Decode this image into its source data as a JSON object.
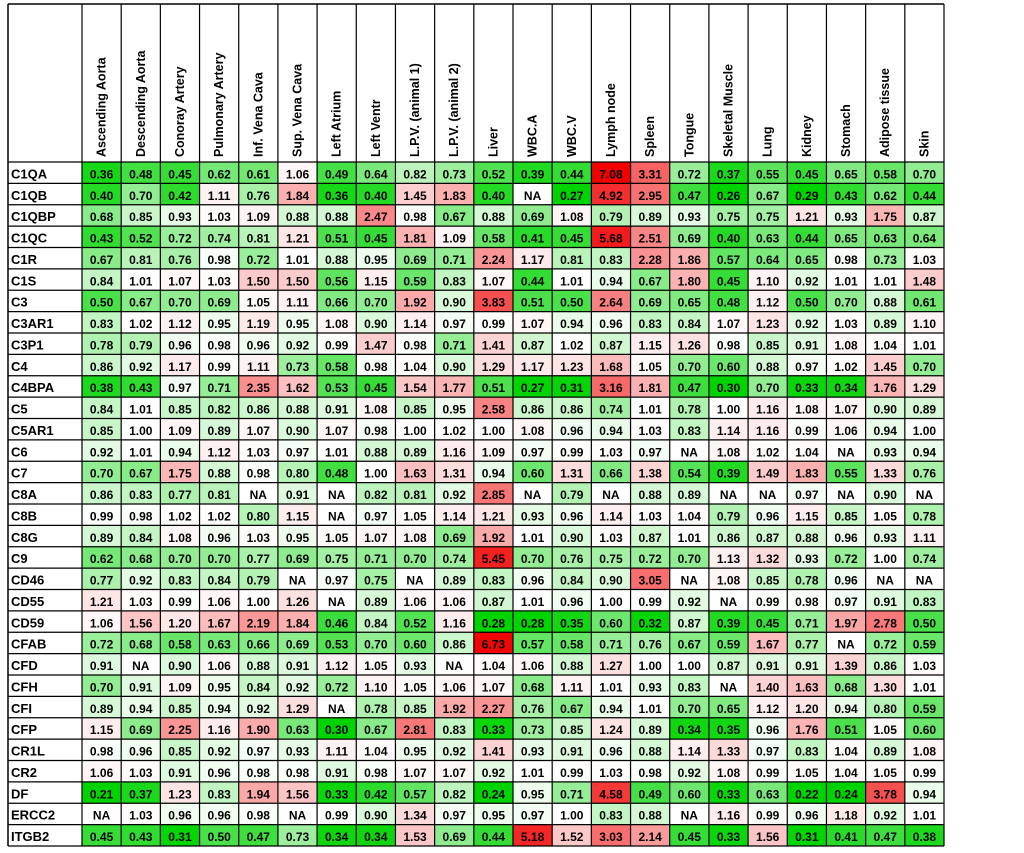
{
  "chart_data": {
    "type": "heatmap",
    "corner_label": "",
    "columns": [
      "Ascending Aorta",
      "Descending Aorta",
      "Conoray Artery",
      "Pulmonary Artery",
      "Inf. Vena Cava",
      "Sup. Vena Cava",
      "Left Atrium",
      "Left Ventr",
      "L.P.V. (animal 1)",
      "L.P.V. (animal 2)",
      "Liver",
      "WBC.A",
      "WBC.V",
      "Lymph node",
      "Spleen",
      "Tongue",
      "Skeletal Muscle",
      "Lung",
      "Kidney",
      "Stomach",
      "Adipose tissue",
      "Skin"
    ],
    "rows": [
      "C1QA",
      "C1QB",
      "C1QBP",
      "C1QC",
      "C1R",
      "C1S",
      "C3",
      "C3AR1",
      "C3P1",
      "C4",
      "C4BPA",
      "C5",
      "C5AR1",
      "C6",
      "C7",
      "C8A",
      "C8B",
      "C8G",
      "C9",
      "CD46",
      "CD55",
      "CD59",
      "CFAB",
      "CFD",
      "CFH",
      "CFI",
      "CFP",
      "CR1L",
      "CR2",
      "DF",
      "ERCC2",
      "ITGB2"
    ],
    "values": [
      [
        "0.36",
        "0.48",
        "0.45",
        "0.62",
        "0.61",
        "1.06",
        "0.49",
        "0.64",
        "0.82",
        "0.73",
        "0.52",
        "0.39",
        "0.44",
        "7.08",
        "3.31",
        "0.72",
        "0.37",
        "0.55",
        "0.45",
        "0.65",
        "0.58",
        "0.70"
      ],
      [
        "0.40",
        "0.70",
        "0.42",
        "1.11",
        "0.76",
        "1.84",
        "0.36",
        "0.40",
        "1.45",
        "1.83",
        "0.40",
        "NA",
        "0.27",
        "4.92",
        "2.95",
        "0.47",
        "0.26",
        "0.67",
        "0.29",
        "0.43",
        "0.62",
        "0.44"
      ],
      [
        "0.68",
        "0.85",
        "0.93",
        "1.03",
        "1.09",
        "0.88",
        "0.88",
        "2.47",
        "0.98",
        "0.67",
        "0.88",
        "0.69",
        "1.08",
        "0.79",
        "0.89",
        "0.93",
        "0.75",
        "0.75",
        "1.21",
        "0.93",
        "1.75",
        "0.87"
      ],
      [
        "0.43",
        "0.52",
        "0.72",
        "0.74",
        "0.81",
        "1.21",
        "0.51",
        "0.45",
        "1.81",
        "1.09",
        "0.58",
        "0.41",
        "0.45",
        "5.68",
        "2.51",
        "0.69",
        "0.40",
        "0.63",
        "0.44",
        "0.65",
        "0.63",
        "0.64"
      ],
      [
        "0.67",
        "0.81",
        "0.76",
        "0.98",
        "0.72",
        "1.01",
        "0.88",
        "0.95",
        "0.69",
        "0.71",
        "2.24",
        "1.17",
        "0.81",
        "0.83",
        "2.28",
        "1.86",
        "0.57",
        "0.64",
        "0.65",
        "0.98",
        "0.73",
        "1.03"
      ],
      [
        "0.84",
        "1.01",
        "1.07",
        "1.03",
        "1.50",
        "1.50",
        "0.56",
        "1.15",
        "0.59",
        "0.83",
        "1.07",
        "0.44",
        "1.01",
        "0.94",
        "0.67",
        "1.80",
        "0.45",
        "1.10",
        "0.92",
        "1.01",
        "1.01",
        "1.48"
      ],
      [
        "0.50",
        "0.67",
        "0.70",
        "0.69",
        "1.05",
        "1.11",
        "0.66",
        "0.70",
        "1.92",
        "0.90",
        "3.83",
        "0.51",
        "0.50",
        "2.64",
        "0.69",
        "0.65",
        "0.48",
        "1.12",
        "0.50",
        "0.70",
        "0.88",
        "0.61"
      ],
      [
        "0.83",
        "1.02",
        "1.12",
        "0.95",
        "1.19",
        "0.95",
        "1.08",
        "0.90",
        "1.14",
        "0.97",
        "0.99",
        "1.07",
        "0.94",
        "0.96",
        "0.83",
        "0.84",
        "1.07",
        "1.23",
        "0.92",
        "1.03",
        "0.89",
        "1.10"
      ],
      [
        "0.78",
        "0.79",
        "0.96",
        "0.98",
        "0.96",
        "0.92",
        "0.99",
        "1.47",
        "0.98",
        "0.71",
        "1.41",
        "0.87",
        "1.02",
        "0.87",
        "1.15",
        "1.26",
        "0.98",
        "0.85",
        "0.91",
        "1.08",
        "1.04",
        "1.01"
      ],
      [
        "0.86",
        "0.92",
        "1.17",
        "0.99",
        "1.11",
        "0.73",
        "0.58",
        "0.98",
        "1.04",
        "0.90",
        "1.29",
        "1.17",
        "1.23",
        "1.68",
        "1.05",
        "0.70",
        "0.60",
        "0.88",
        "0.97",
        "1.02",
        "1.45",
        "0.70"
      ],
      [
        "0.38",
        "0.43",
        "0.97",
        "0.71",
        "2.35",
        "1.62",
        "0.53",
        "0.45",
        "1.54",
        "1.77",
        "0.51",
        "0.27",
        "0.31",
        "3.16",
        "1.81",
        "0.47",
        "0.30",
        "0.70",
        "0.33",
        "0.34",
        "1.76",
        "1.29"
      ],
      [
        "0.84",
        "1.01",
        "0.85",
        "0.82",
        "0.86",
        "0.88",
        "0.91",
        "1.08",
        "0.85",
        "0.95",
        "2.58",
        "0.86",
        "0.86",
        "0.74",
        "1.01",
        "0.78",
        "1.00",
        "1.16",
        "1.08",
        "1.07",
        "0.90",
        "0.89"
      ],
      [
        "0.85",
        "1.00",
        "1.09",
        "0.89",
        "1.07",
        "0.90",
        "1.07",
        "0.98",
        "1.00",
        "1.02",
        "1.00",
        "1.08",
        "0.96",
        "0.94",
        "1.03",
        "0.83",
        "1.14",
        "1.16",
        "0.99",
        "1.06",
        "0.94",
        "1.00"
      ],
      [
        "0.92",
        "1.01",
        "0.94",
        "1.12",
        "1.03",
        "0.97",
        "1.01",
        "0.88",
        "0.89",
        "1.16",
        "1.09",
        "0.97",
        "0.99",
        "1.03",
        "0.97",
        "NA",
        "1.08",
        "1.02",
        "1.04",
        "NA",
        "0.93",
        "0.94"
      ],
      [
        "0.70",
        "0.67",
        "1.75",
        "0.88",
        "0.98",
        "0.80",
        "0.48",
        "1.00",
        "1.63",
        "1.31",
        "0.94",
        "0.60",
        "1.31",
        "0.66",
        "1.38",
        "0.54",
        "0.39",
        "1.49",
        "1.83",
        "0.55",
        "1.33",
        "0.76"
      ],
      [
        "0.86",
        "0.83",
        "0.77",
        "0.81",
        "NA",
        "0.91",
        "NA",
        "0.82",
        "0.81",
        "0.92",
        "2.85",
        "NA",
        "0.79",
        "NA",
        "0.88",
        "0.89",
        "NA",
        "NA",
        "0.97",
        "NA",
        "0.90",
        "NA"
      ],
      [
        "0.99",
        "0.98",
        "1.02",
        "1.02",
        "0.80",
        "1.15",
        "NA",
        "0.97",
        "1.05",
        "1.14",
        "1.21",
        "0.93",
        "0.96",
        "1.14",
        "1.03",
        "1.04",
        "0.79",
        "0.96",
        "1.15",
        "0.85",
        "1.05",
        "0.78"
      ],
      [
        "0.89",
        "0.84",
        "1.08",
        "0.96",
        "1.03",
        "0.95",
        "1.05",
        "1.07",
        "1.08",
        "0.69",
        "1.92",
        "1.01",
        "0.90",
        "1.03",
        "0.87",
        "1.01",
        "0.86",
        "0.87",
        "0.88",
        "0.96",
        "0.93",
        "1.11"
      ],
      [
        "0.62",
        "0.68",
        "0.70",
        "0.70",
        "0.77",
        "0.69",
        "0.75",
        "0.71",
        "0.70",
        "0.74",
        "5.45",
        "0.70",
        "0.76",
        "0.75",
        "0.72",
        "0.70",
        "1.13",
        "1.32",
        "0.93",
        "0.72",
        "1.00",
        "0.74"
      ],
      [
        "0.77",
        "0.92",
        "0.83",
        "0.84",
        "0.79",
        "NA",
        "0.97",
        "0.75",
        "NA",
        "0.89",
        "0.83",
        "0.96",
        "0.84",
        "0.90",
        "3.05",
        "NA",
        "1.08",
        "0.85",
        "0.78",
        "0.96",
        "NA",
        "NA"
      ],
      [
        "1.21",
        "1.03",
        "0.99",
        "1.06",
        "1.00",
        "1.26",
        "NA",
        "0.89",
        "1.06",
        "1.06",
        "0.87",
        "1.01",
        "0.96",
        "1.00",
        "0.99",
        "0.92",
        "NA",
        "0.99",
        "0.98",
        "0.97",
        "0.91",
        "0.83"
      ],
      [
        "1.06",
        "1.56",
        "1.20",
        "1.67",
        "2.19",
        "1.84",
        "0.46",
        "0.84",
        "0.52",
        "1.16",
        "0.28",
        "0.28",
        "0.35",
        "0.60",
        "0.32",
        "0.87",
        "0.39",
        "0.45",
        "0.71",
        "1.97",
        "2.78",
        "0.50"
      ],
      [
        "0.72",
        "0.68",
        "0.58",
        "0.63",
        "0.66",
        "0.69",
        "0.53",
        "0.70",
        "0.60",
        "0.86",
        "6.73",
        "0.57",
        "0.58",
        "0.71",
        "0.76",
        "0.67",
        "0.59",
        "1.67",
        "0.77",
        "NA",
        "0.72",
        "0.59"
      ],
      [
        "0.91",
        "NA",
        "0.90",
        "1.06",
        "0.88",
        "0.91",
        "1.12",
        "1.05",
        "0.93",
        "NA",
        "1.04",
        "1.06",
        "0.88",
        "1.27",
        "1.00",
        "1.00",
        "0.87",
        "0.91",
        "0.91",
        "1.39",
        "0.86",
        "1.03"
      ],
      [
        "0.70",
        "0.91",
        "1.09",
        "0.95",
        "0.84",
        "0.92",
        "0.72",
        "1.10",
        "1.05",
        "1.06",
        "1.07",
        "0.68",
        "1.11",
        "1.01",
        "0.93",
        "0.83",
        "NA",
        "1.40",
        "1.63",
        "0.68",
        "1.30",
        "1.01"
      ],
      [
        "0.89",
        "0.94",
        "0.85",
        "0.94",
        "0.92",
        "1.29",
        "NA",
        "0.78",
        "0.85",
        "1.92",
        "2.27",
        "0.76",
        "0.67",
        "0.94",
        "1.01",
        "0.70",
        "0.65",
        "1.12",
        "1.20",
        "0.94",
        "0.80",
        "0.59"
      ],
      [
        "1.15",
        "0.69",
        "2.25",
        "1.16",
        "1.90",
        "0.63",
        "0.30",
        "0.67",
        "2.81",
        "0.83",
        "0.33",
        "0.73",
        "0.85",
        "1.24",
        "0.89",
        "0.34",
        "0.35",
        "0.96",
        "1.76",
        "0.51",
        "1.05",
        "0.60"
      ],
      [
        "0.98",
        "0.96",
        "0.85",
        "0.92",
        "0.97",
        "0.93",
        "1.11",
        "1.04",
        "0.95",
        "0.92",
        "1.41",
        "0.93",
        "0.91",
        "0.96",
        "0.88",
        "1.14",
        "1.33",
        "0.97",
        "0.83",
        "1.04",
        "0.89",
        "1.08"
      ],
      [
        "1.06",
        "1.03",
        "0.91",
        "0.96",
        "0.98",
        "0.98",
        "0.91",
        "0.98",
        "1.07",
        "1.07",
        "0.92",
        "1.01",
        "0.99",
        "1.03",
        "0.98",
        "0.92",
        "1.08",
        "0.99",
        "1.05",
        "1.04",
        "1.05",
        "0.99"
      ],
      [
        "0.21",
        "0.37",
        "1.23",
        "0.83",
        "1.94",
        "1.56",
        "0.33",
        "0.42",
        "0.57",
        "0.82",
        "0.24",
        "0.95",
        "0.71",
        "4.58",
        "0.49",
        "0.60",
        "0.33",
        "0.63",
        "0.22",
        "0.24",
        "3.78",
        "0.94"
      ],
      [
        "NA",
        "1.03",
        "0.96",
        "0.96",
        "0.98",
        "NA",
        "0.99",
        "0.90",
        "1.34",
        "0.97",
        "0.95",
        "0.97",
        "1.00",
        "0.83",
        "0.88",
        "NA",
        "1.16",
        "0.99",
        "0.96",
        "1.18",
        "0.92",
        "1.01"
      ],
      [
        "0.45",
        "0.43",
        "0.31",
        "0.50",
        "0.47",
        "0.73",
        "0.34",
        "0.34",
        "1.53",
        "0.69",
        "0.44",
        "5.18",
        "1.52",
        "3.03",
        "2.14",
        "0.45",
        "0.33",
        "1.56",
        "0.31",
        "0.41",
        "0.47",
        "0.38"
      ]
    ],
    "color_scale": {
      "low": "#00d400",
      "mid": "#ffffff",
      "high": "#f20000",
      "na": "#ffffff",
      "grid": "#000000"
    }
  }
}
